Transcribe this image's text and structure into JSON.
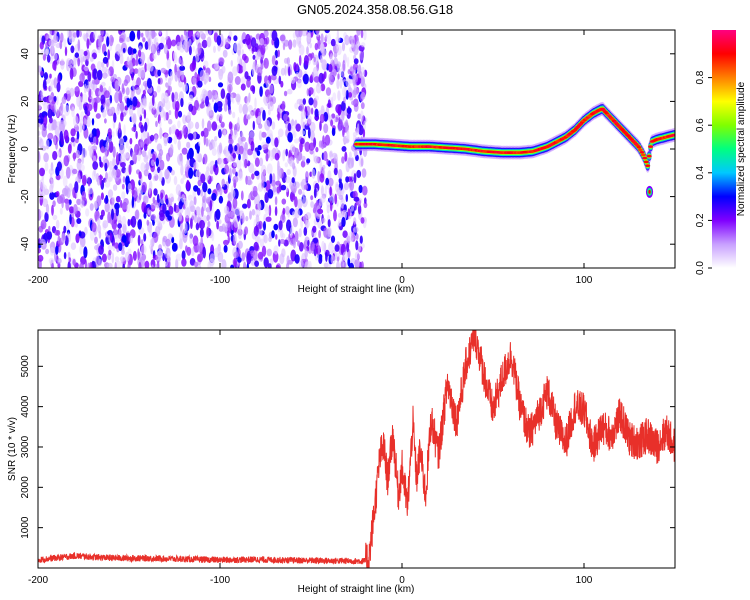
{
  "title": "GN05.2024.358.08.56.G18",
  "chart_data": [
    {
      "type": "heatmap",
      "xlabel": "Height of straight line (km)",
      "ylabel": "Frequency (Hz)",
      "xlim": [
        -200,
        150
      ],
      "ylim": [
        -50,
        50
      ],
      "x_ticks": [
        "-200",
        "-100",
        "0",
        "100"
      ],
      "y_ticks": [
        "40",
        "20",
        "0",
        "-20",
        "-40"
      ],
      "noise_region": {
        "x_from": -200,
        "x_to": -20
      },
      "ridge": {
        "x": [
          -25,
          -15,
          -5,
          5,
          15,
          25,
          35,
          45,
          55,
          65,
          72,
          80,
          85,
          90,
          95,
          100,
          105,
          110,
          115,
          120,
          125,
          130,
          133,
          135,
          137,
          140,
          145,
          150
        ],
        "y": [
          2,
          2,
          1.5,
          1,
          1,
          0.5,
          0,
          -1,
          -1.5,
          -1.5,
          -1,
          1,
          3,
          5,
          8,
          12,
          15,
          17,
          13,
          9,
          5,
          1,
          -3,
          -7,
          3,
          4,
          5,
          6
        ]
      },
      "isolated_points": [
        {
          "x": 136,
          "y": -18
        }
      ],
      "colorbar": {
        "label": "Normalized spectral amplitude",
        "ticks": [
          "0.0",
          "0.2",
          "0.4",
          "0.6",
          "0.8"
        ],
        "range": [
          0,
          1
        ],
        "colors": [
          "#ffffff",
          "#c8a0ff",
          "#8000ff",
          "#0000ff",
          "#00c8ff",
          "#00ff80",
          "#80ff00",
          "#ffff00",
          "#ff8000",
          "#ff0000",
          "#ff0080"
        ]
      }
    },
    {
      "type": "line",
      "xlabel": "Height of straight line (km)",
      "ylabel": "SNR (10 * v/v)",
      "xlim": [
        -200,
        150
      ],
      "ylim": [
        0,
        5900
      ],
      "x_ticks": [
        "-200",
        "-100",
        "0",
        "100"
      ],
      "y_ticks": [
        "1000",
        "2000",
        "3000",
        "4000",
        "5000"
      ],
      "color": "#e8302a",
      "series": [
        {
          "x": [
            -200,
            -180,
            -160,
            -140,
            -120,
            -100,
            -80,
            -60,
            -40,
            -20,
            -18,
            -15,
            -12,
            -10,
            -8,
            -5,
            -2,
            0,
            3,
            6,
            8,
            10,
            13,
            16,
            20,
            25,
            30,
            35,
            40,
            45,
            50,
            55,
            60,
            65,
            70,
            75,
            80,
            85,
            90,
            95,
            100,
            105,
            110,
            115,
            120,
            125,
            130,
            135,
            140,
            145,
            150
          ],
          "y": [
            200,
            300,
            250,
            240,
            220,
            200,
            210,
            190,
            180,
            170,
            300,
            1500,
            2800,
            3000,
            2200,
            3300,
            1800,
            2500,
            1500,
            3600,
            2200,
            2900,
            1800,
            3700,
            2800,
            4600,
            3600,
            5000,
            5800,
            4800,
            3900,
            4700,
            5300,
            4000,
            3300,
            3800,
            4400,
            3500,
            3100,
            4000,
            3900,
            3000,
            3500,
            3300,
            3800,
            3200,
            3100,
            3300,
            3000,
            3400,
            3000
          ]
        }
      ]
    }
  ]
}
